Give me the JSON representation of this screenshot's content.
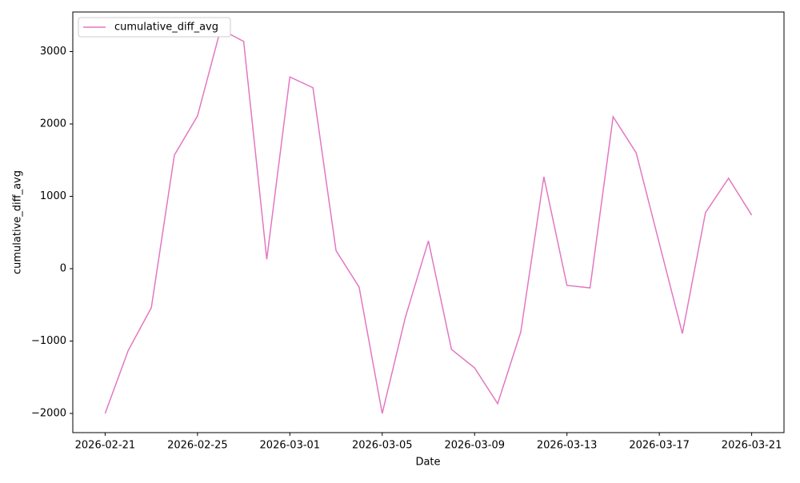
{
  "chart_data": {
    "type": "line",
    "x": [
      "2026-02-21",
      "2026-02-22",
      "2026-02-23",
      "2026-02-24",
      "2026-02-25",
      "2026-02-26",
      "2026-02-27",
      "2026-02-28",
      "2026-03-01",
      "2026-03-02",
      "2026-03-03",
      "2026-03-04",
      "2026-03-05",
      "2026-03-06",
      "2026-03-07",
      "2026-03-08",
      "2026-03-09",
      "2026-03-10",
      "2026-03-11",
      "2026-03-12",
      "2026-03-13",
      "2026-03-14",
      "2026-03-15",
      "2026-03-16",
      "2026-03-17",
      "2026-03-18",
      "2026-03-19",
      "2026-03-20",
      "2026-03-21"
    ],
    "series": [
      {
        "name": "cumulative_diff_avg",
        "color": "#e377c2",
        "values": [
          -2000,
          -1130,
          -540,
          1570,
          2110,
          3310,
          3140,
          130,
          2650,
          2500,
          250,
          -255,
          -2000,
          -675,
          385,
          -1115,
          -1370,
          -1865,
          -875,
          1270,
          -230,
          -265,
          2100,
          1600,
          350,
          -895,
          775,
          1250,
          740
        ]
      }
    ],
    "xlabel": "Date",
    "ylabel": "cumulative_diff_avg",
    "xticks": [
      "2026-02-21",
      "2026-02-25",
      "2026-03-01",
      "2026-03-05",
      "2026-03-09",
      "2026-03-13",
      "2026-03-17",
      "2026-03-21"
    ],
    "ylim": [
      -2265,
      3547
    ],
    "yticks": [
      {
        "value": -2000,
        "label": "−2000"
      },
      {
        "value": -1000,
        "label": "−1000"
      },
      0,
      1000,
      2000,
      3000
    ],
    "legend": "upper left",
    "grid": false
  }
}
